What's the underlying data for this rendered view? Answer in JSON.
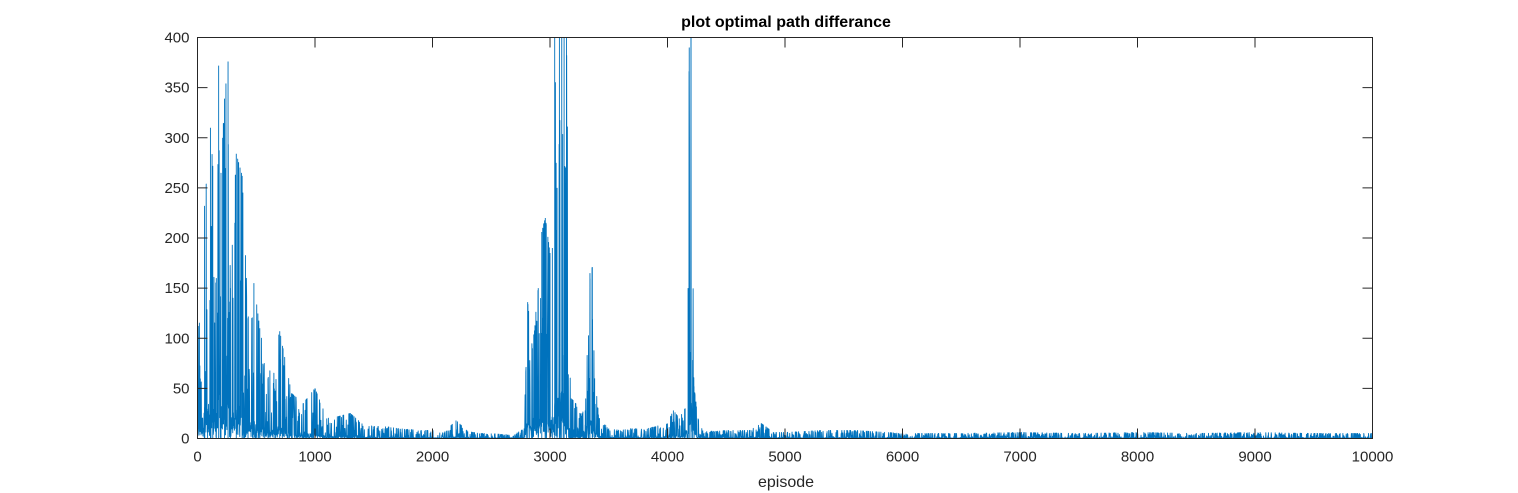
{
  "chart_data": {
    "type": "line",
    "title": "plot optimal path differance",
    "xlabel": "episode",
    "ylabel": "",
    "xlim": [
      0,
      10000
    ],
    "ylim": [
      0,
      400
    ],
    "xticks": [
      0,
      1000,
      2000,
      3000,
      4000,
      5000,
      6000,
      7000,
      8000,
      9000,
      10000
    ],
    "yticks": [
      0,
      50,
      100,
      150,
      200,
      250,
      300,
      350,
      400
    ],
    "xtick_labels": [
      "0",
      "1000",
      "2000",
      "3000",
      "4000",
      "5000",
      "6000",
      "7000",
      "8000",
      "9000",
      "10000"
    ],
    "ytick_labels": [
      "0",
      "50",
      "100",
      "150",
      "200",
      "250",
      "300",
      "350",
      "400"
    ],
    "grid": false,
    "legend": "none",
    "line_color": "#0072BD",
    "series": [
      {
        "x": [
          0,
          60,
          110,
          130,
          160,
          180,
          200,
          230,
          260,
          280,
          330,
          380,
          430,
          480,
          530,
          600,
          700,
          800,
          900,
          1000,
          1100,
          1200,
          1300,
          1400,
          1500,
          1600,
          1700,
          1800,
          1900,
          2000,
          2100,
          2200,
          2300,
          2400,
          2500,
          2600,
          2700,
          2780,
          2810,
          2850,
          2900,
          2930,
          2960,
          3000,
          3020,
          3040,
          3060,
          3080,
          3100,
          3120,
          3140,
          3180,
          3220,
          3260,
          3300,
          3340,
          3360,
          3380,
          3420,
          3500,
          3600,
          3700,
          3800,
          3900,
          4000,
          4050,
          4100,
          4150,
          4175,
          4185,
          4200,
          4225,
          4260,
          4300,
          4400,
          4500,
          4600,
          4700,
          4800,
          4900,
          5000,
          5300,
          5600,
          6000,
          6500,
          7000,
          7500,
          8000,
          8500,
          9000,
          9500,
          10000
        ],
        "values": [
          115,
          232,
          310,
          272,
          160,
          372,
          265,
          339,
          376,
          150,
          284,
          262,
          120,
          155,
          110,
          60,
          107,
          45,
          35,
          50,
          20,
          22,
          25,
          15,
          12,
          12,
          10,
          9,
          8,
          8,
          6,
          18,
          7,
          5,
          5,
          4,
          4,
          10,
          136,
          90,
          150,
          206,
          220,
          185,
          190,
          400,
          250,
          400,
          400,
          400,
          400,
          40,
          35,
          25,
          28,
          165,
          171,
          60,
          20,
          10,
          8,
          10,
          9,
          12,
          15,
          28,
          20,
          30,
          150,
          390,
          400,
          52,
          20,
          8,
          7,
          8,
          8,
          8,
          15,
          6,
          6,
          8,
          8,
          5,
          5,
          6,
          5,
          6,
          5,
          6,
          5,
          5
        ]
      }
    ]
  }
}
